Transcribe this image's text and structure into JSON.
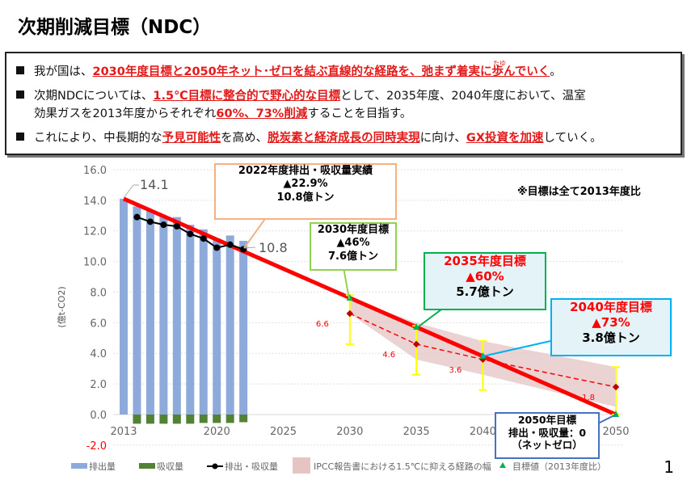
{
  "title": "次期削減目標（NDC）",
  "bullets": [
    {
      "a": "我が国は、",
      "b": "2030年度目標と2050年ネット･ゼロを結ぶ直線的な経路を、弛まず着実に歩んでいく",
      "c": "。",
      "ruby": "たゆ"
    },
    {
      "a": "次期NDCについては、",
      "b": "1.5℃目標に整合的で野心的な目標",
      "c": "として、2035年度、2040年度において、温室",
      "d": "効果ガスを2013年度からそれぞれ",
      "e": "60%、73%削減",
      "f": "することを目指す。"
    },
    {
      "a": "これにより、中長期的な",
      "b": "予見可能性",
      "c": "を高め、",
      "d": "脱炭素と経済成長の同時実現",
      "e": "に向け、",
      "f": "GX投資を加速",
      "g": "していく。"
    }
  ],
  "note": "※目標は全て2013年度比",
  "callouts": {
    "c2022": [
      "2022年度排出・吸収量実績",
      "▲22.9%",
      "10.8億トン"
    ],
    "c2030": [
      "2030年度目標",
      "▲46%",
      "7.6億トン"
    ],
    "c2035": [
      "2035年度目標",
      "▲60%",
      "5.7億トン"
    ],
    "c2040": [
      "2040年度目標",
      "▲73%",
      "3.8億トン"
    ],
    "c2050": [
      "2050年目標",
      "排出・吸収量：0",
      "（ネットゼロ）"
    ]
  },
  "page_number": "1",
  "colors": {
    "emission": "#8eaadb",
    "absorption": "#548235",
    "target_line": "#ff0000",
    "band": "#e6c4c4",
    "target_marker": "#00b050",
    "error": "#ffff00"
  },
  "chart_data": {
    "type": "bar",
    "ylabel": "(億t-CO2)",
    "ylim": [
      -2,
      16
    ],
    "yticks": [
      "16.0",
      "14.0",
      "12.0",
      "10.0",
      "8.0",
      "6.0",
      "4.0",
      "2.0",
      "0.0",
      "-2.0"
    ],
    "ytick_values": [
      16,
      14,
      12,
      10,
      8,
      6,
      4,
      2,
      0,
      -2
    ],
    "xticks": [
      "2013",
      "2020",
      "2025",
      "2030",
      "2035",
      "2040",
      "2050"
    ],
    "xtick_values": [
      2013,
      2020,
      2025,
      2030,
      2035,
      2040,
      2050
    ],
    "years": [
      2013,
      2014,
      2015,
      2016,
      2017,
      2018,
      2019,
      2020,
      2021,
      2022
    ],
    "series": [
      {
        "name": "排出量",
        "values": [
          14.1,
          13.6,
          13.3,
          13.0,
          12.9,
          12.4,
          12.1,
          11.5,
          11.7,
          11.35
        ]
      },
      {
        "name": "吸収量",
        "values": [
          0,
          -0.6,
          -0.6,
          -0.6,
          -0.6,
          -0.6,
          -0.55,
          -0.55,
          -0.55,
          -0.5
        ]
      },
      {
        "name": "排出・吸収量",
        "years": [
          2014,
          2015,
          2016,
          2017,
          2018,
          2019,
          2020,
          2021,
          2022
        ],
        "values": [
          12.9,
          12.6,
          12.4,
          12.3,
          11.8,
          11.5,
          10.9,
          11.1,
          10.8
        ]
      },
      {
        "name": "目標値（2013年度比）",
        "years": [
          2013,
          2030,
          2035,
          2040,
          2050
        ],
        "values": [
          14.1,
          7.6,
          5.7,
          3.8,
          0
        ]
      },
      {
        "name": "IPCC報告書における1.5℃に抑える経路の幅",
        "years": [
          2030,
          2035,
          2040,
          2050
        ],
        "upper": [
          7.6,
          6.0,
          4.8,
          3.1
        ],
        "lower": [
          6.6,
          3.6,
          2.6,
          0.5
        ],
        "median": [
          6.6,
          4.6,
          3.6,
          1.8
        ],
        "err_low": [
          4.6,
          2.6,
          1.6,
          0
        ],
        "err_high": [
          7.8,
          5.8,
          4.8,
          3.1
        ]
      }
    ],
    "data_labels": {
      "start": "14.1",
      "end2022": "10.8",
      "ipcc": [
        "6.6",
        "4.6",
        "3.6",
        "1.8"
      ]
    },
    "legend": [
      "排出量",
      "吸収量",
      "排出・吸収量",
      "IPCC報告書における1.5℃に抑える経路の幅",
      "目標値（2013年度比）"
    ]
  }
}
